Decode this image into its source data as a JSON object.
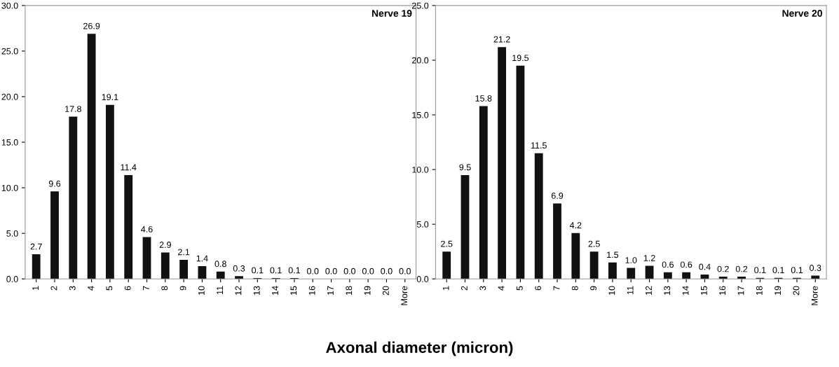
{
  "chart_data": [
    {
      "type": "bar",
      "title": "Nerve 19",
      "xlabel": "Axonal diameter (micron)",
      "categories": [
        "1",
        "2",
        "3",
        "4",
        "5",
        "6",
        "7",
        "8",
        "9",
        "10",
        "11",
        "12",
        "13",
        "14",
        "15",
        "16",
        "17",
        "18",
        "19",
        "20",
        "More"
      ],
      "values": [
        2.7,
        9.6,
        17.8,
        26.9,
        19.1,
        11.4,
        4.6,
        2.9,
        2.1,
        1.4,
        0.8,
        0.3,
        0.1,
        0.1,
        0.1,
        0.0,
        0.0,
        0.0,
        0.0,
        0.0,
        0.0
      ],
      "value_labels": [
        "2.7",
        "9.6",
        "17.8",
        "26.9",
        "19.1",
        "11.4",
        "4.6",
        "2.9",
        "2.1",
        "1.4",
        "0.8",
        "0.3",
        "0.1",
        "0.1",
        "0.1",
        "0.0",
        "0.0",
        "0.0",
        "0.0",
        "0.0",
        "0.0"
      ],
      "color": "#111111",
      "ylim": [
        0,
        30
      ],
      "yticks": [
        {
          "value": 0,
          "label": "0.0"
        },
        {
          "value": 5,
          "label": "5.0"
        },
        {
          "value": 10,
          "label": "10.0"
        },
        {
          "value": 15,
          "label": "15.0"
        },
        {
          "value": 20,
          "label": "20.0"
        },
        {
          "value": 25,
          "label": "25.0"
        },
        {
          "value": 30,
          "label": "30.0"
        }
      ],
      "grid": false
    },
    {
      "type": "bar",
      "title": "Nerve 20",
      "categories": [
        "1",
        "2",
        "3",
        "4",
        "5",
        "6",
        "7",
        "8",
        "9",
        "10",
        "11",
        "12",
        "13",
        "14",
        "15",
        "16",
        "17",
        "18",
        "19",
        "20",
        "More"
      ],
      "values": [
        2.5,
        9.5,
        15.8,
        21.2,
        19.5,
        11.5,
        6.9,
        4.2,
        2.5,
        1.5,
        1.0,
        1.2,
        0.6,
        0.6,
        0.4,
        0.2,
        0.2,
        0.1,
        0.1,
        0.1,
        0.3
      ],
      "value_labels": [
        "2.5",
        "9.5",
        "15.8",
        "21.2",
        "19.5",
        "11.5",
        "6.9",
        "4.2",
        "2.5",
        "1.5",
        "1.0",
        "1.2",
        "0.6",
        "0.6",
        "0.4",
        "0.2",
        "0.2",
        "0.1",
        "0.1",
        "0.1",
        "0.3"
      ],
      "color": "#111111",
      "ylim": [
        0,
        25
      ],
      "yticks": [
        {
          "value": 0,
          "label": "0.0"
        },
        {
          "value": 5,
          "label": "5.0"
        },
        {
          "value": 10,
          "label": "10.0"
        },
        {
          "value": 15,
          "label": "15.0"
        },
        {
          "value": 20,
          "label": "20.0"
        },
        {
          "value": 25,
          "label": "25.0"
        }
      ],
      "grid": false
    }
  ]
}
